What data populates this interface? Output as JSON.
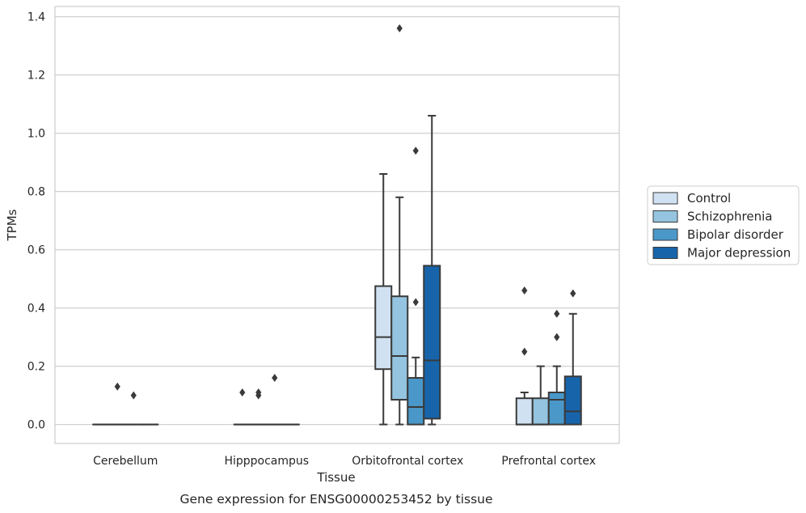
{
  "chart_data": {
    "type": "box",
    "xlabel": "Tissue",
    "ylabel": "TPMs",
    "caption": "Gene expression for ENSG00000253452 by tissue",
    "ylim": [
      -0.065,
      1.435
    ],
    "yticks": [
      "0.0",
      "0.2",
      "0.4",
      "0.6",
      "0.8",
      "1.0",
      "1.2",
      "1.4"
    ],
    "grid": true,
    "legend_position": "right",
    "categories": [
      "Cerebellum",
      "Hipppocampus",
      "Orbitofrontal cortex",
      "Prefrontal cortex"
    ],
    "series": [
      {
        "name": "Control",
        "color": "#d0e1f2",
        "boxes": [
          {
            "q1": 0,
            "median": 0,
            "q3": 0,
            "whisker_low": 0,
            "whisker_high": 0,
            "outliers": []
          },
          {
            "q1": 0,
            "median": 0,
            "q3": 0,
            "whisker_low": 0,
            "whisker_high": 0,
            "outliers": [
              0.11
            ]
          },
          {
            "q1": 0.19,
            "median": 0.3,
            "q3": 0.475,
            "whisker_low": 0,
            "whisker_high": 0.86,
            "outliers": []
          },
          {
            "q1": 0,
            "median": 0,
            "q3": 0.09,
            "whisker_low": 0,
            "whisker_high": 0.11,
            "outliers": [
              0.25,
              0.46
            ]
          }
        ]
      },
      {
        "name": "Schizophrenia",
        "color": "#94c4df",
        "boxes": [
          {
            "q1": 0,
            "median": 0,
            "q3": 0,
            "whisker_low": 0,
            "whisker_high": 0,
            "outliers": [
              0.13
            ]
          },
          {
            "q1": 0,
            "median": 0,
            "q3": 0,
            "whisker_low": 0,
            "whisker_high": 0,
            "outliers": [
              0.1,
              0.11
            ]
          },
          {
            "q1": 0.085,
            "median": 0.235,
            "q3": 0.44,
            "whisker_low": 0,
            "whisker_high": 0.78,
            "outliers": [
              1.36
            ]
          },
          {
            "q1": 0,
            "median": 0,
            "q3": 0.09,
            "whisker_low": 0,
            "whisker_high": 0.2,
            "outliers": []
          }
        ]
      },
      {
        "name": "Bipolar disorder",
        "color": "#4a98c9",
        "boxes": [
          {
            "q1": 0,
            "median": 0,
            "q3": 0,
            "whisker_low": 0,
            "whisker_high": 0,
            "outliers": [
              0.1
            ]
          },
          {
            "q1": 0,
            "median": 0,
            "q3": 0,
            "whisker_low": 0,
            "whisker_high": 0,
            "outliers": [
              0.16
            ]
          },
          {
            "q1": 0,
            "median": 0.06,
            "q3": 0.16,
            "whisker_low": 0,
            "whisker_high": 0.23,
            "outliers": [
              0.42,
              0.94
            ]
          },
          {
            "q1": 0,
            "median": 0.085,
            "q3": 0.11,
            "whisker_low": 0,
            "whisker_high": 0.2,
            "outliers": [
              0.3,
              0.38
            ]
          }
        ]
      },
      {
        "name": "Major depression",
        "color": "#1764ab",
        "boxes": [
          {
            "q1": 0,
            "median": 0,
            "q3": 0,
            "whisker_low": 0,
            "whisker_high": 0,
            "outliers": []
          },
          {
            "q1": 0,
            "median": 0,
            "q3": 0,
            "whisker_low": 0,
            "whisker_high": 0,
            "outliers": []
          },
          {
            "q1": 0.02,
            "median": 0.22,
            "q3": 0.545,
            "whisker_low": 0,
            "whisker_high": 1.06,
            "outliers": []
          },
          {
            "q1": 0,
            "median": 0.045,
            "q3": 0.165,
            "whisker_low": 0,
            "whisker_high": 0.38,
            "outliers": [
              0.45
            ]
          }
        ]
      }
    ]
  }
}
